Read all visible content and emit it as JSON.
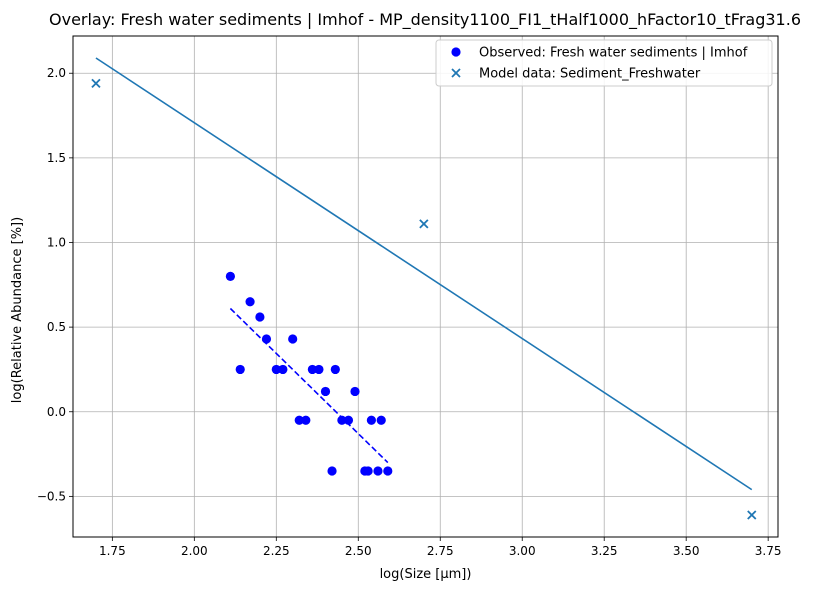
{
  "chart_data": {
    "type": "scatter",
    "title": "Overlay: Fresh water sediments | Imhof - MP_density1100_FI1_tHalf1000_hFactor10_tFrag31.6",
    "xlabel": "log(Size [µm])",
    "ylabel": "log(Relative Abundance [%])",
    "xlim": [
      1.63,
      3.78
    ],
    "ylim": [
      -0.74,
      2.22
    ],
    "xticks": [
      1.75,
      2.0,
      2.25,
      2.5,
      2.75,
      3.0,
      3.25,
      3.5,
      3.75
    ],
    "xtick_labels": [
      "1.75",
      "2.00",
      "2.25",
      "2.50",
      "2.75",
      "3.00",
      "3.25",
      "3.50",
      "3.75"
    ],
    "yticks": [
      -0.5,
      0.0,
      0.5,
      1.0,
      1.5,
      2.0
    ],
    "ytick_labels": [
      "−0.5",
      "0.0",
      "0.5",
      "1.0",
      "1.5",
      "2.0"
    ],
    "grid": true,
    "legend_position": "top-right",
    "series": [
      {
        "name": "Observed: Fresh water sediments | Imhof",
        "kind": "scatter",
        "marker": "circle",
        "color": "#0000ff",
        "x": [
          2.11,
          2.14,
          2.17,
          2.2,
          2.22,
          2.25,
          2.27,
          2.3,
          2.32,
          2.34,
          2.36,
          2.38,
          2.4,
          2.42,
          2.43,
          2.45,
          2.47,
          2.49,
          2.52,
          2.53,
          2.54,
          2.56,
          2.57,
          2.59
        ],
        "y": [
          0.8,
          0.25,
          0.65,
          0.56,
          0.43,
          0.25,
          0.25,
          0.43,
          -0.05,
          -0.05,
          0.25,
          0.25,
          0.12,
          -0.35,
          0.25,
          -0.05,
          -0.05,
          0.12,
          -0.35,
          -0.35,
          -0.05,
          -0.35,
          -0.05,
          -0.35
        ]
      },
      {
        "name": "Model data: Sediment_Freshwater",
        "kind": "scatter",
        "marker": "x",
        "color": "#1f77b4",
        "x": [
          1.7,
          2.7,
          3.7
        ],
        "y": [
          1.94,
          1.11,
          -0.61
        ]
      },
      {
        "kind": "line",
        "style": "dashed",
        "color": "#0000ff",
        "x": [
          2.11,
          2.59
        ],
        "y": [
          0.61,
          -0.3
        ]
      },
      {
        "kind": "line",
        "style": "solid",
        "color": "#1f77b4",
        "x": [
          1.7,
          3.7
        ],
        "y": [
          2.09,
          -0.46
        ]
      }
    ]
  }
}
